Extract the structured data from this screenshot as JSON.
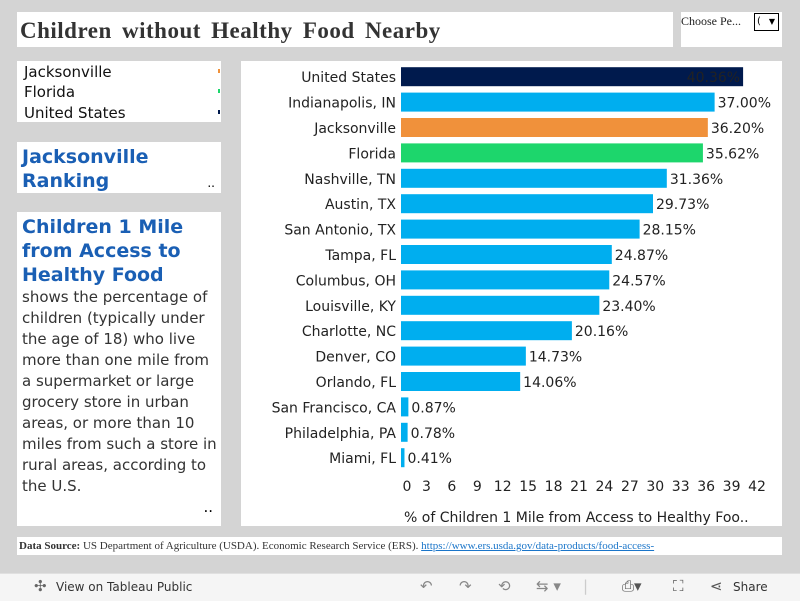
{
  "title": "Children without Healthy Food Nearby",
  "parameter": {
    "label": "Choose Pe...",
    "value": "("
  },
  "legend": [
    {
      "label": "Jacksonville",
      "color": "#f0913b"
    },
    {
      "label": "Florida",
      "color": "#1dd66c"
    },
    {
      "label": "United States",
      "color": "#001a4d"
    }
  ],
  "ranking": {
    "title": "Jacksonville Ranking",
    "more": ".."
  },
  "description": {
    "heading": "Children 1 Mile from Access to Healthy Food",
    "body": "shows the percentage of children (typically under the age of 18) who live more than one mile from a supermarket or large grocery store in urban areas, or more than 10 miles from such a store in rural areas, according to the U.S.",
    "more": ".."
  },
  "chart_data": {
    "type": "bar",
    "orientation": "horizontal",
    "categories": [
      "United States",
      "Indianapolis, IN",
      "Jacksonville",
      "Florida",
      "Nashville, TN",
      "Austin, TX",
      "San Antonio, TX",
      "Tampa, FL",
      "Columbus, OH",
      "Louisville, KY",
      "Charlotte, NC",
      "Denver, CO",
      "Orlando, FL",
      "San Francisco, CA",
      "Philadelphia, PA",
      "Miami, FL"
    ],
    "values": [
      40.36,
      37.0,
      36.2,
      35.62,
      31.36,
      29.73,
      28.15,
      24.87,
      24.57,
      23.4,
      20.16,
      14.73,
      14.06,
      0.87,
      0.78,
      0.41
    ],
    "labels": [
      "40.36%",
      "37.00%",
      "36.20%",
      "35.62%",
      "31.36%",
      "29.73%",
      "28.15%",
      "24.87%",
      "24.57%",
      "23.40%",
      "20.16%",
      "14.73%",
      "14.06%",
      "0.87%",
      "0.78%",
      "0.41%"
    ],
    "colors": [
      "#001a4d",
      "#00aeef",
      "#f0913b",
      "#1dd66c",
      "#00aeef",
      "#00aeef",
      "#00aeef",
      "#00aeef",
      "#00aeef",
      "#00aeef",
      "#00aeef",
      "#00aeef",
      "#00aeef",
      "#00aeef",
      "#00aeef",
      "#00aeef"
    ],
    "xticks": [
      0,
      3,
      6,
      9,
      12,
      15,
      18,
      21,
      24,
      27,
      30,
      33,
      36,
      39,
      42
    ],
    "xlim": [
      0,
      42
    ],
    "xlabel": "% of Children 1 Mile from Access to Healthy Foo..",
    "grid": false
  },
  "source": {
    "prefix": "Data Source:",
    "text": " US Department of Agriculture (USDA). Economic Research Service (ERS). ",
    "link": "https://www.ers.usda.gov/data-products/food-access-"
  },
  "toolbar": {
    "view": "View on Tableau Public",
    "share": "Share"
  }
}
